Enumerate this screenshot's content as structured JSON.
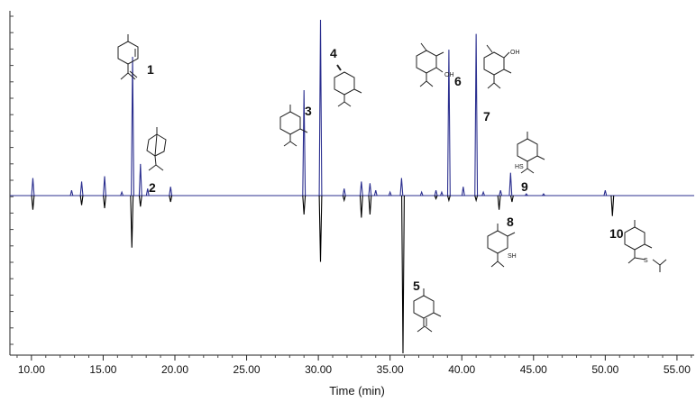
{
  "chart_data": {
    "type": "line",
    "xlabel": "Time (min)",
    "ylabel": "",
    "xlim": [
      8.5,
      56.2
    ],
    "ylim": [
      -100,
      100
    ],
    "x_ticks": [
      "10.00",
      "15.00",
      "20.00",
      "25.00",
      "30.00",
      "35.00",
      "40.00",
      "45.00",
      "50.00",
      "55.00"
    ],
    "grid": false,
    "series": [
      {
        "name": "",
        "color": "#2b2f8f",
        "direction": "up",
        "peaks": [
          {
            "t": 10.1,
            "h": 10
          },
          {
            "t": 12.8,
            "h": 3
          },
          {
            "t": 13.5,
            "h": 8
          },
          {
            "t": 15.1,
            "h": 11
          },
          {
            "t": 16.3,
            "h": 2
          },
          {
            "t": 17.05,
            "h": 79
          },
          {
            "t": 17.6,
            "h": 18
          },
          {
            "t": 18.1,
            "h": 4
          },
          {
            "t": 19.7,
            "h": 5
          },
          {
            "t": 29.0,
            "h": 60
          },
          {
            "t": 30.15,
            "h": 100
          },
          {
            "t": 31.8,
            "h": 4
          },
          {
            "t": 33.0,
            "h": 8
          },
          {
            "t": 33.6,
            "h": 7
          },
          {
            "t": 34.0,
            "h": 3
          },
          {
            "t": 35.0,
            "h": 2
          },
          {
            "t": 35.8,
            "h": 10
          },
          {
            "t": 37.2,
            "h": 2
          },
          {
            "t": 38.2,
            "h": 3
          },
          {
            "t": 38.6,
            "h": 2
          },
          {
            "t": 39.1,
            "h": 83
          },
          {
            "t": 40.1,
            "h": 5
          },
          {
            "t": 41.0,
            "h": 92
          },
          {
            "t": 41.5,
            "h": 2
          },
          {
            "t": 42.7,
            "h": 3
          },
          {
            "t": 43.4,
            "h": 13
          },
          {
            "t": 44.5,
            "h": 1
          },
          {
            "t": 45.7,
            "h": 1
          },
          {
            "t": 50.0,
            "h": 3
          }
        ]
      },
      {
        "name": "",
        "color": "#000000",
        "direction": "down",
        "peaks": [
          {
            "t": 10.1,
            "h": 9
          },
          {
            "t": 13.5,
            "h": 6
          },
          {
            "t": 15.1,
            "h": 8
          },
          {
            "t": 17.0,
            "h": 33
          },
          {
            "t": 17.6,
            "h": 7
          },
          {
            "t": 19.7,
            "h": 4
          },
          {
            "t": 29.0,
            "h": 12
          },
          {
            "t": 30.15,
            "h": 42
          },
          {
            "t": 31.8,
            "h": 3
          },
          {
            "t": 33.0,
            "h": 14
          },
          {
            "t": 33.6,
            "h": 12
          },
          {
            "t": 35.9,
            "h": 100
          },
          {
            "t": 38.2,
            "h": 2
          },
          {
            "t": 39.1,
            "h": 3
          },
          {
            "t": 41.0,
            "h": 3
          },
          {
            "t": 42.6,
            "h": 9
          },
          {
            "t": 43.5,
            "h": 4
          },
          {
            "t": 50.5,
            "h": 13
          }
        ]
      }
    ],
    "annotations": [
      {
        "label": "1",
        "t": 17.05
      },
      {
        "label": "2",
        "t": 17.6
      },
      {
        "label": "3",
        "t": 29.0
      },
      {
        "label": "4",
        "t": 30.15
      },
      {
        "label": "5",
        "t": 35.9
      },
      {
        "label": "6",
        "t": 39.1
      },
      {
        "label": "7",
        "t": 41.0
      },
      {
        "label": "8",
        "t": 42.6
      },
      {
        "label": "9",
        "t": 43.4
      },
      {
        "label": "10",
        "t": 50.5
      }
    ],
    "structure_texts": {
      "oh": "OH",
      "hs": "HS",
      "sh": "SH",
      "s": "S"
    }
  }
}
